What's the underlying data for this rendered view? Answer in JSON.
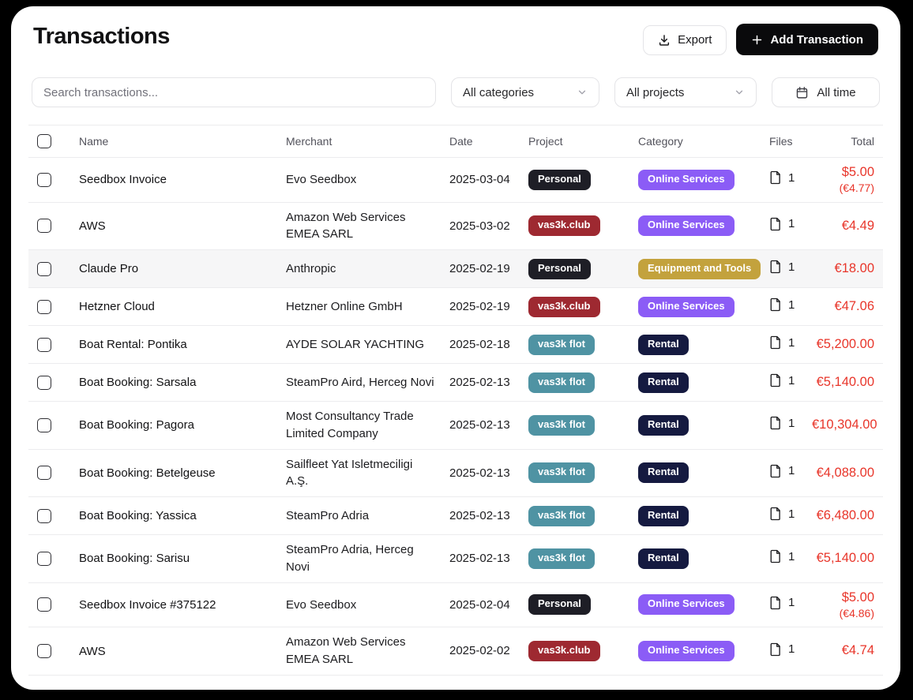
{
  "page": {
    "title": "Transactions"
  },
  "toolbar": {
    "export_label": "Export",
    "add_label": "Add Transaction"
  },
  "filters": {
    "search_placeholder": "Search transactions...",
    "categories_value": "All categories",
    "projects_value": "All projects",
    "date_range_value": "All time"
  },
  "colors": {
    "amount_negative": "#e8352a",
    "badge_personal": "#1e1e26",
    "badge_vas3k_club": "#9e2931",
    "badge_vas3k_flot": "#4f93a3",
    "badge_online_services": "#8b5cf6",
    "badge_equipment_tools": "#c3a23d",
    "badge_rental": "#151a40"
  },
  "table": {
    "columns": [
      "Name",
      "Merchant",
      "Date",
      "Project",
      "Category",
      "Files",
      "Total"
    ],
    "rows": [
      {
        "name": "Seedbox Invoice",
        "merchant": "Evo Seedbox",
        "date": "2025-03-04",
        "project": {
          "label": "Personal",
          "color": "#1e1e26"
        },
        "category": {
          "label": "Online Services",
          "color": "#8b5cf6"
        },
        "files": "1",
        "total": {
          "primary": "$5.00",
          "secondary": "(€4.77)"
        },
        "highlighted": false
      },
      {
        "name": "AWS",
        "merchant": "Amazon Web Services EMEA SARL",
        "date": "2025-03-02",
        "project": {
          "label": "vas3k.club",
          "color": "#9e2931"
        },
        "category": {
          "label": "Online Services",
          "color": "#8b5cf6"
        },
        "files": "1",
        "total": {
          "primary": "€4.49",
          "secondary": ""
        },
        "highlighted": false
      },
      {
        "name": "Claude Pro",
        "merchant": "Anthropic",
        "date": "2025-02-19",
        "project": {
          "label": "Personal",
          "color": "#1e1e26"
        },
        "category": {
          "label": "Equipment and Tools",
          "color": "#c3a23d"
        },
        "files": "1",
        "total": {
          "primary": "€18.00",
          "secondary": ""
        },
        "highlighted": true
      },
      {
        "name": "Hetzner Cloud",
        "merchant": "Hetzner Online GmbH",
        "date": "2025-02-19",
        "project": {
          "label": "vas3k.club",
          "color": "#9e2931"
        },
        "category": {
          "label": "Online Services",
          "color": "#8b5cf6"
        },
        "files": "1",
        "total": {
          "primary": "€47.06",
          "secondary": ""
        },
        "highlighted": false
      },
      {
        "name": "Boat Rental: Pontika",
        "merchant": "AYDE SOLAR YACHTING",
        "date": "2025-02-18",
        "project": {
          "label": "vas3k flot",
          "color": "#4f93a3"
        },
        "category": {
          "label": "Rental",
          "color": "#151a40"
        },
        "files": "1",
        "total": {
          "primary": "€5,200.00",
          "secondary": ""
        },
        "highlighted": false
      },
      {
        "name": "Boat Booking: Sarsala",
        "merchant": "SteamPro Aird, Herceg Novi",
        "date": "2025-02-13",
        "project": {
          "label": "vas3k flot",
          "color": "#4f93a3"
        },
        "category": {
          "label": "Rental",
          "color": "#151a40"
        },
        "files": "1",
        "total": {
          "primary": "€5,140.00",
          "secondary": ""
        },
        "highlighted": false
      },
      {
        "name": "Boat Booking: Pagora",
        "merchant": "Most Consultancy Trade Limited Company",
        "date": "2025-02-13",
        "project": {
          "label": "vas3k flot",
          "color": "#4f93a3"
        },
        "category": {
          "label": "Rental",
          "color": "#151a40"
        },
        "files": "1",
        "total": {
          "primary": "€10,304.00",
          "secondary": ""
        },
        "highlighted": false
      },
      {
        "name": "Boat Booking: Betelgeuse",
        "merchant": "Sailfleet Yat Isletmeciligi A.Ş.",
        "date": "2025-02-13",
        "project": {
          "label": "vas3k flot",
          "color": "#4f93a3"
        },
        "category": {
          "label": "Rental",
          "color": "#151a40"
        },
        "files": "1",
        "total": {
          "primary": "€4,088.00",
          "secondary": ""
        },
        "highlighted": false
      },
      {
        "name": "Boat Booking: Yassica",
        "merchant": "SteamPro Adria",
        "date": "2025-02-13",
        "project": {
          "label": "vas3k flot",
          "color": "#4f93a3"
        },
        "category": {
          "label": "Rental",
          "color": "#151a40"
        },
        "files": "1",
        "total": {
          "primary": "€6,480.00",
          "secondary": ""
        },
        "highlighted": false
      },
      {
        "name": "Boat Booking: Sarisu",
        "merchant": "SteamPro Adria, Herceg Novi",
        "date": "2025-02-13",
        "project": {
          "label": "vas3k flot",
          "color": "#4f93a3"
        },
        "category": {
          "label": "Rental",
          "color": "#151a40"
        },
        "files": "1",
        "total": {
          "primary": "€5,140.00",
          "secondary": ""
        },
        "highlighted": false
      },
      {
        "name": "Seedbox Invoice #375122",
        "merchant": "Evo Seedbox",
        "date": "2025-02-04",
        "project": {
          "label": "Personal",
          "color": "#1e1e26"
        },
        "category": {
          "label": "Online Services",
          "color": "#8b5cf6"
        },
        "files": "1",
        "total": {
          "primary": "$5.00",
          "secondary": "(€4.86)"
        },
        "highlighted": false
      },
      {
        "name": "AWS",
        "merchant": "Amazon Web Services EMEA SARL",
        "date": "2025-02-02",
        "project": {
          "label": "vas3k.club",
          "color": "#9e2931"
        },
        "category": {
          "label": "Online Services",
          "color": "#8b5cf6"
        },
        "files": "1",
        "total": {
          "primary": "€4.74",
          "secondary": ""
        },
        "highlighted": false
      }
    ]
  }
}
